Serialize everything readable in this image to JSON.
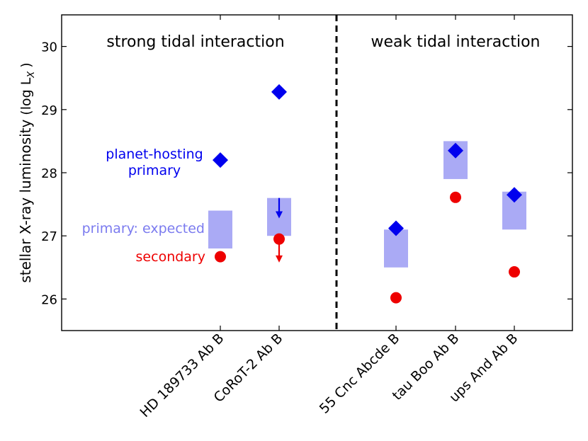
{
  "chart_data": {
    "type": "scatter",
    "ylabel_main": "stellar X-ray luminosity",
    "ylabel_suffix": "(log L",
    "ylabel_sub": "X",
    "ylabel_close": ")",
    "ylim": [
      25.5,
      30.5
    ],
    "yticks": [
      26,
      27,
      28,
      29,
      30
    ],
    "categories": [
      "HD 189733 Ab B",
      "CoRoT-2 Ab B",
      "55 Cnc Abcde B",
      "tau Boo Ab B",
      "ups And Ab B"
    ],
    "regions": [
      {
        "label": "strong tidal interaction"
      },
      {
        "label": "weak tidal interaction"
      }
    ],
    "expected_ranges": [
      {
        "category": "HD 189733 Ab B",
        "low": 26.8,
        "high": 27.4
      },
      {
        "category": "CoRoT-2 Ab B",
        "low": 27.0,
        "high": 27.6
      },
      {
        "category": "55 Cnc Abcde B",
        "low": 26.5,
        "high": 27.1
      },
      {
        "category": "tau Boo Ab B",
        "low": 27.9,
        "high": 28.5
      },
      {
        "category": "ups And Ab B",
        "low": 27.1,
        "high": 27.7
      }
    ],
    "series": [
      {
        "name": "planet-hosting primary",
        "marker": "diamond",
        "color": "#0000ee",
        "values": [
          28.2,
          29.28,
          27.12,
          28.35,
          27.65
        ]
      },
      {
        "name": "secondary",
        "marker": "circle",
        "color": "#ee0000",
        "values": [
          26.67,
          26.95,
          26.02,
          27.61,
          26.43
        ]
      }
    ],
    "upper_limits": [
      {
        "category": "CoRoT-2 Ab B",
        "series": "primary",
        "from": 27.6,
        "to": 27.3
      },
      {
        "category": "CoRoT-2 Ab B",
        "series": "secondary",
        "from": 26.95,
        "to": 26.6
      }
    ],
    "annotations": {
      "primary_line1": "planet-hosting",
      "primary_line2": "primary",
      "expected": "primary: expected",
      "secondary": "secondary"
    },
    "colors": {
      "primary": "#0000ee",
      "secondary": "#ee0000",
      "expected": "#aaaaf5",
      "expected_text": "#7b7bef"
    }
  }
}
